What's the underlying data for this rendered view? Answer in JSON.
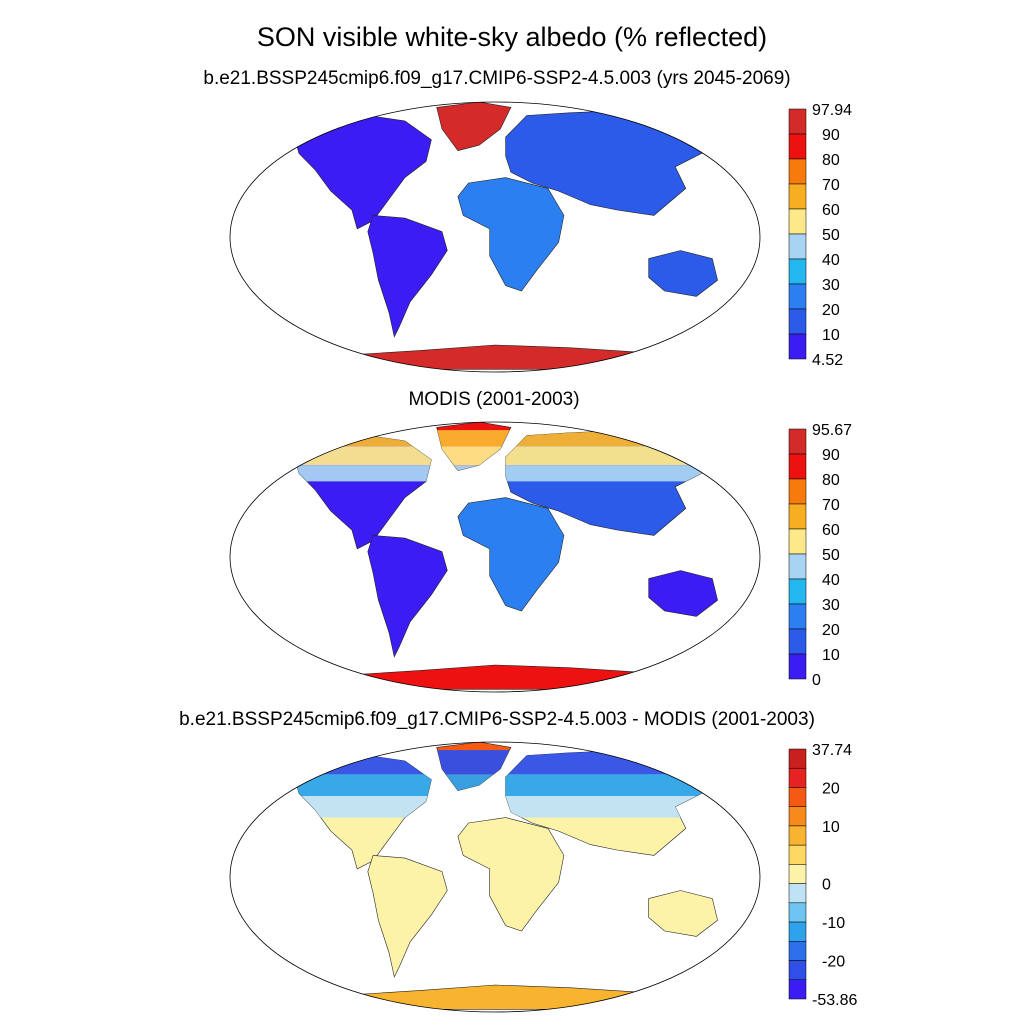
{
  "title": "SON visible white-sky albedo (% reflected)",
  "panels": [
    {
      "title": "b.e21.BSSP245cmip6.f09_g17.CMIP6-SSP2-4.5.003 (yrs 2045-2069)",
      "colorbar": {
        "max_label": "97.94",
        "min_label": "4.52",
        "ticks": [
          "90",
          "80",
          "70",
          "60",
          "50",
          "40",
          "30",
          "20",
          "10"
        ],
        "colors": [
          "#d42a2a",
          "#ee1111",
          "#f77a0c",
          "#f7ae22",
          "#fde88a",
          "#a9d3f2",
          "#23b8ef",
          "#2c7ff1",
          "#2c5ae9",
          "#3b1df4"
        ]
      }
    },
    {
      "title": "MODIS (2001-2003)",
      "colorbar": {
        "max_label": "95.67",
        "min_label": "0",
        "ticks": [
          "90",
          "80",
          "70",
          "60",
          "50",
          "40",
          "30",
          "20",
          "10"
        ],
        "colors": [
          "#d42a2a",
          "#ee1111",
          "#f77a0c",
          "#f7ae22",
          "#fde88a",
          "#a9d3f2",
          "#23b8ef",
          "#2c7ff1",
          "#2c5ae9",
          "#3b1df4"
        ]
      }
    },
    {
      "title": "b.e21.BSSP245cmip6.f09_g17.CMIP6-SSP2-4.5.003 - MODIS (2001-2003)",
      "colorbar": {
        "max_label": "37.74",
        "min_label": "-53.86",
        "ticks": [
          "20",
          "10",
          "0",
          "-10",
          "-20"
        ],
        "colors": [
          "#c91f1f",
          "#e62222",
          "#f55a14",
          "#f78a1a",
          "#f8b42e",
          "#fbd962",
          "#fdf3a8",
          "#bfe3f5",
          "#6fc5f2",
          "#2ea3ec",
          "#2c6fe9",
          "#2f4fe8",
          "#3b1df4"
        ]
      }
    }
  ]
}
